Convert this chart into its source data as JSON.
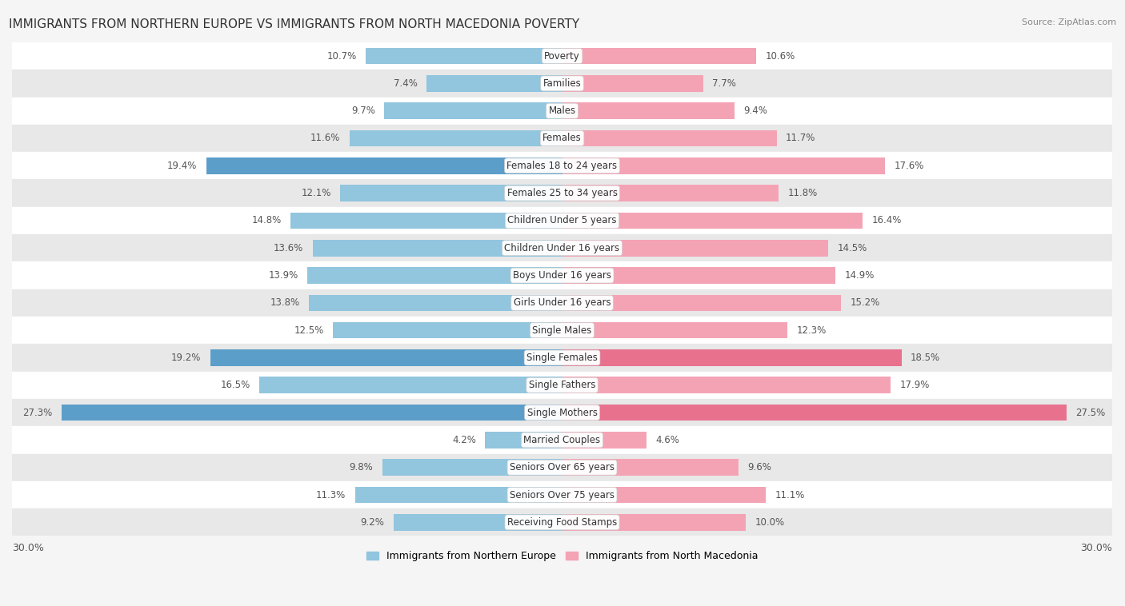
{
  "title": "IMMIGRANTS FROM NORTHERN EUROPE VS IMMIGRANTS FROM NORTH MACEDONIA POVERTY",
  "source": "Source: ZipAtlas.com",
  "categories": [
    "Poverty",
    "Families",
    "Males",
    "Females",
    "Females 18 to 24 years",
    "Females 25 to 34 years",
    "Children Under 5 years",
    "Children Under 16 years",
    "Boys Under 16 years",
    "Girls Under 16 years",
    "Single Males",
    "Single Females",
    "Single Fathers",
    "Single Mothers",
    "Married Couples",
    "Seniors Over 65 years",
    "Seniors Over 75 years",
    "Receiving Food Stamps"
  ],
  "left_values": [
    10.7,
    7.4,
    9.7,
    11.6,
    19.4,
    12.1,
    14.8,
    13.6,
    13.9,
    13.8,
    12.5,
    19.2,
    16.5,
    27.3,
    4.2,
    9.8,
    11.3,
    9.2
  ],
  "right_values": [
    10.6,
    7.7,
    9.4,
    11.7,
    17.6,
    11.8,
    16.4,
    14.5,
    14.9,
    15.2,
    12.3,
    18.5,
    17.9,
    27.5,
    4.6,
    9.6,
    11.1,
    10.0
  ],
  "left_color": "#92c5de",
  "right_color": "#f4a3b5",
  "left_label": "Immigrants from Northern Europe",
  "right_label": "Immigrants from North Macedonia",
  "left_highlight_color": "#5b9ec9",
  "right_highlight_color": "#e8728e",
  "highlight_threshold": 18.0,
  "axis_max": 30.0,
  "bar_height": 0.6,
  "background_color": "#f5f5f5",
  "row_bg_light": "#ffffff",
  "row_bg_dark": "#e8e8e8"
}
